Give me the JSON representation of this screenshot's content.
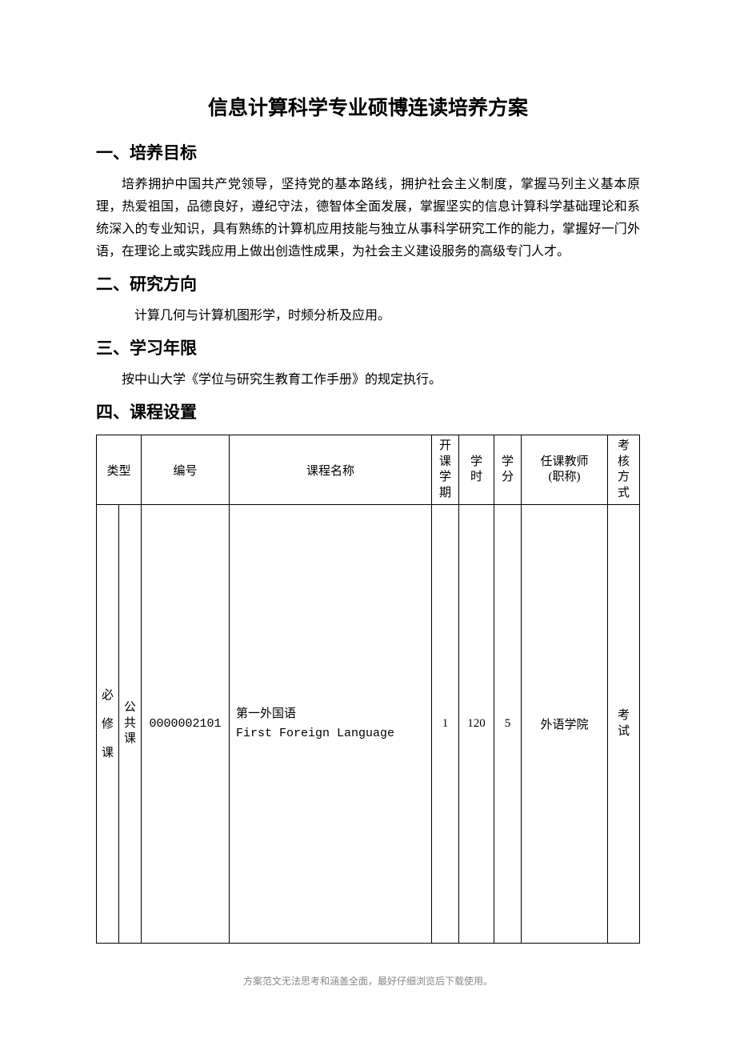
{
  "title": "信息计算科学专业硕博连读培养方案",
  "sections": {
    "s1": {
      "heading": "一、培养目标",
      "body": "培养拥护中国共产党领导，坚持党的基本路线，拥护社会主义制度，掌握马列主义基本原理，热爱祖国，品德良好，遵纪守法，德智体全面发展，掌握坚实的信息计算科学基础理论和系统深入的专业知识，具有熟练的计算机应用技能与独立从事科学研究工作的能力，掌握好一门外语，在理论上或实践应用上做出创造性成果，为社会主义建设服务的高级专门人才。"
    },
    "s2": {
      "heading": "二、研究方向",
      "body": "计算几何与计算机图形学，时频分析及应用。"
    },
    "s3": {
      "heading": "三、学习年限",
      "body": "按中山大学《学位与研究生教育工作手册》的规定执行。"
    },
    "s4": {
      "heading": "四、课程设置"
    }
  },
  "table": {
    "headers": {
      "type": "类型",
      "code": "编号",
      "name": "课程名称",
      "semester_l1": "开",
      "semester_l2": "课",
      "semester_l3": "学",
      "semester_l4": "期",
      "hours_l1": "学",
      "hours_l2": "时",
      "credit_l1": "学",
      "credit_l2": "分",
      "teacher_l1": "任课教师",
      "teacher_l2": "(职称)",
      "exam_l1": "考",
      "exam_l2": "核",
      "exam_l3": "方",
      "exam_l4": "式"
    },
    "row1": {
      "type_a_l1": "必",
      "type_a_l2": "修",
      "type_a_l3": "课",
      "type_b_l1": "公",
      "type_b_l2": "共",
      "type_b_l3": "课",
      "code": "0000002101",
      "name_cn": "第一外国语",
      "name_en": "First Foreign Language",
      "semester": "1",
      "hours": "120",
      "credit": "5",
      "teacher": "外语学院",
      "exam_l1": "考",
      "exam_l2": "试"
    }
  },
  "footer": "方案范文无法思考和涵盖全面，最好仔细浏览后下载使用。"
}
